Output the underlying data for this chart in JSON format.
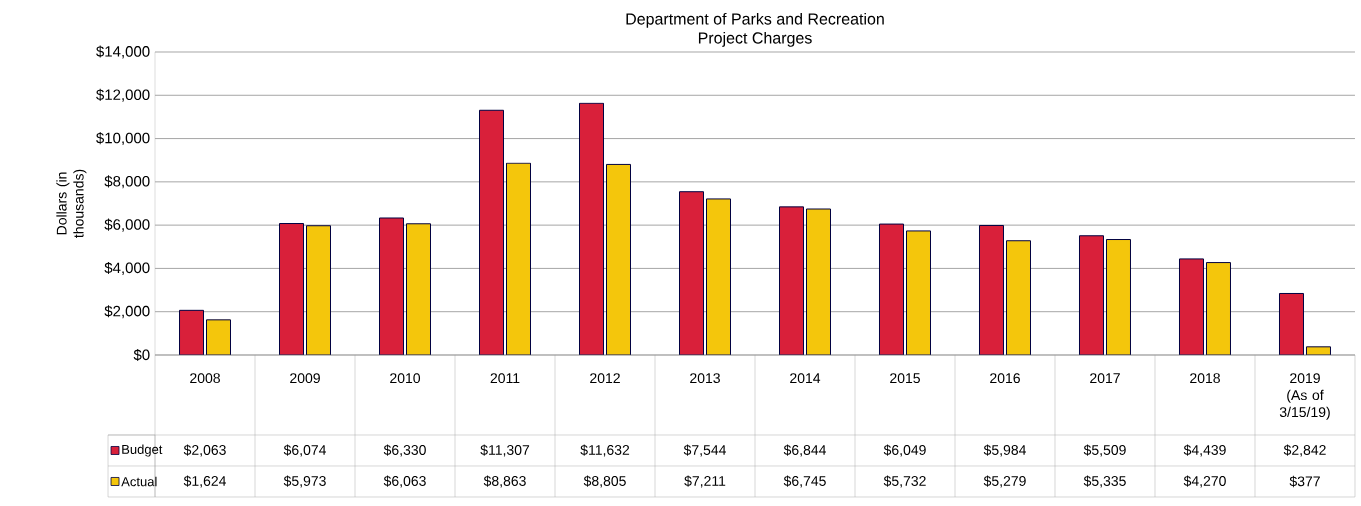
{
  "chart_data": {
    "type": "bar",
    "title": "Department of Parks and Recreation",
    "subtitle": "Project Charges",
    "ylabel": "Dollars (in thousands)",
    "categories": [
      "2008",
      "2009",
      "2010",
      "2011",
      "2012",
      "2013",
      "2014",
      "2015",
      "2016",
      "2017",
      "2018",
      "2019 (As of 3/15/19)"
    ],
    "series": [
      {
        "name": "Budget",
        "color": "#d9203a",
        "values": [
          2063,
          6074,
          6330,
          11307,
          11632,
          7544,
          6844,
          6049,
          5984,
          5509,
          4439,
          2842
        ],
        "value_labels": [
          "$2,063",
          "$6,074",
          "$6,330",
          "$11,307",
          "$11,632",
          "$7,544",
          "$6,844",
          "$6,049",
          "$5,984",
          "$5,509",
          "$4,439",
          "$2,842"
        ]
      },
      {
        "name": "Actual",
        "color": "#f4c60c",
        "values": [
          1624,
          5973,
          6063,
          8863,
          8805,
          7211,
          6745,
          5732,
          5279,
          5335,
          4270,
          377
        ],
        "value_labels": [
          "$1,624",
          "$5,973",
          "$6,063",
          "$8,863",
          "$8,805",
          "$7,211",
          "$6,745",
          "$5,732",
          "$5,279",
          "$5,335",
          "$4,270",
          "$377"
        ]
      }
    ],
    "ylim": [
      0,
      14000
    ],
    "yticks": [
      {
        "value": 0,
        "label": "$0"
      },
      {
        "value": 2000,
        "label": "$2,000"
      },
      {
        "value": 4000,
        "label": "$4,000"
      },
      {
        "value": 6000,
        "label": "$6,000"
      },
      {
        "value": 8000,
        "label": "$8,000"
      },
      {
        "value": 10000,
        "label": "$10,000"
      },
      {
        "value": 12000,
        "label": "$12,000"
      },
      {
        "value": 14000,
        "label": "$14,000"
      }
    ],
    "grid": "y",
    "legend": "bottom"
  }
}
